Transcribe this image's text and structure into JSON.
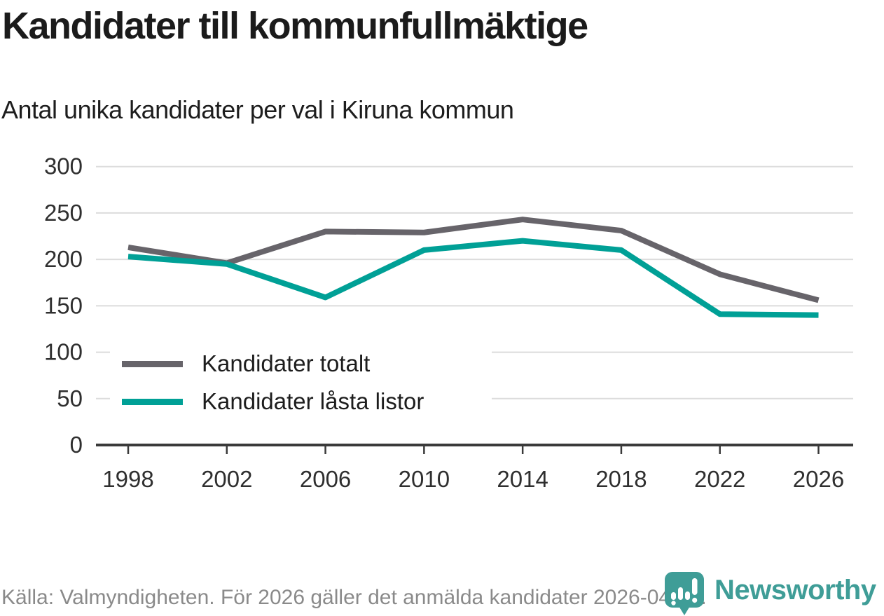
{
  "chart_data": {
    "type": "line",
    "title": "Kandidater till kommunfullmäktige",
    "subtitle": "Antal unika kandidater per val i Kiruna kommun",
    "x": [
      1998,
      2002,
      2006,
      2010,
      2014,
      2018,
      2022,
      2026
    ],
    "series": [
      {
        "name": "Kandidater totalt",
        "color": "#67646a",
        "values": [
          213,
          196,
          230,
          229,
          243,
          231,
          184,
          156
        ]
      },
      {
        "name": "Kandidater låsta listor",
        "color": "#00a096",
        "values": [
          203,
          195,
          159,
          210,
          220,
          210,
          141,
          140
        ]
      }
    ],
    "ylim": [
      0,
      300
    ],
    "y_ticks": [
      0,
      50,
      100,
      150,
      200,
      250,
      300
    ],
    "grid": true,
    "legend_position": "inside-left",
    "xlabel": "",
    "ylabel": ""
  },
  "colors": {
    "gridline": "#dcdcdc",
    "axis": "#3a3a3a",
    "tick_label": "#2f2f2f",
    "brand_teal": "#3f9d97"
  },
  "footer": {
    "source": "Källa: Valmyndigheten. För 2026 gäller det anmälda kandidater 2026-04-10.",
    "brand": "Newsworthy"
  }
}
